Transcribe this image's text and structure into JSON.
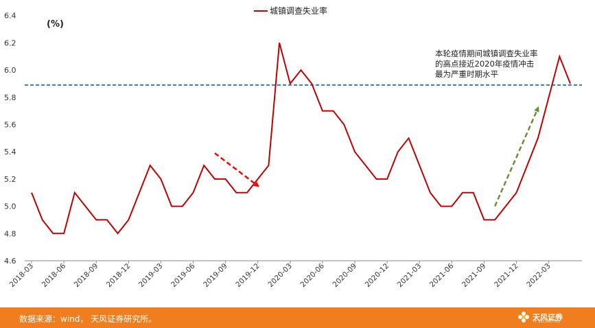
{
  "chart_data": {
    "type": "line",
    "title": "",
    "xlabel": "",
    "ylabel": "",
    "unit_label": "(%)",
    "ylim": [
      4.6,
      6.4
    ],
    "yticks": [
      "4.6",
      "4.8",
      "5.0",
      "5.2",
      "5.4",
      "5.6",
      "5.8",
      "6.0",
      "6.2",
      "6.4"
    ],
    "xtick_labels": [
      "2018-03",
      "2018-06",
      "2018-09",
      "2018-12",
      "2019-03",
      "2019-06",
      "2019-09",
      "2019-12",
      "2020-03",
      "2020-06",
      "2020-09",
      "2020-12",
      "2021-03",
      "2021-06",
      "2021-09",
      "2021-12",
      "2022-03"
    ],
    "series": [
      {
        "name": "城镇调查失业率",
        "color": "#c00000",
        "x": [
          "2018-03",
          "2018-04",
          "2018-05",
          "2018-06",
          "2018-07",
          "2018-08",
          "2018-09",
          "2018-10",
          "2018-11",
          "2018-12",
          "2019-01",
          "2019-02",
          "2019-03",
          "2019-04",
          "2019-05",
          "2019-06",
          "2019-07",
          "2019-08",
          "2019-09",
          "2019-10",
          "2019-11",
          "2019-12",
          "2020-01",
          "2020-02",
          "2020-03",
          "2020-04",
          "2020-05",
          "2020-06",
          "2020-07",
          "2020-08",
          "2020-09",
          "2020-10",
          "2020-11",
          "2020-12",
          "2021-01",
          "2021-02",
          "2021-03",
          "2021-04",
          "2021-05",
          "2021-06",
          "2021-07",
          "2021-08",
          "2021-09",
          "2021-10",
          "2021-11",
          "2021-12",
          "2022-01",
          "2022-02",
          "2022-03",
          "2022-04",
          "2022-05"
        ],
        "values": [
          5.1,
          4.9,
          4.8,
          4.8,
          5.1,
          5.0,
          4.9,
          4.9,
          4.8,
          4.9,
          5.1,
          5.3,
          5.2,
          5.0,
          5.0,
          5.1,
          5.3,
          5.2,
          5.2,
          5.1,
          5.1,
          5.2,
          5.3,
          6.2,
          5.9,
          6.0,
          5.9,
          5.7,
          5.7,
          5.6,
          5.4,
          5.3,
          5.2,
          5.2,
          5.4,
          5.5,
          5.3,
          5.1,
          5.0,
          5.0,
          5.1,
          5.1,
          4.9,
          4.9,
          5.0,
          5.1,
          5.3,
          5.5,
          5.8,
          6.1,
          5.9
        ]
      }
    ],
    "reference_line": {
      "value": 5.89,
      "color": "#1f5f8b",
      "style": "dashed"
    },
    "annotation": {
      "lines": [
        "本轮疫情期间城镇调查失业率",
        "的高点接近2020年疫情冲击",
        "最为严重时期水平"
      ]
    },
    "arrows": [
      {
        "color": "#ff0000",
        "from": [
          "2019-08",
          5.39
        ],
        "to": [
          "2019-12",
          5.15
        ]
      },
      {
        "color": "#6a8f3a",
        "from": [
          "2021-10",
          5.0
        ],
        "to": [
          "2022-02",
          5.72
        ]
      }
    ],
    "legend_position": "top-center",
    "grid": false
  },
  "footer": {
    "source": "数据来源：wind， 天风证券研究所。",
    "logo_text": "天风证券",
    "logo_sub": "TF SECURITIES",
    "background_color": "#f07d1e"
  }
}
